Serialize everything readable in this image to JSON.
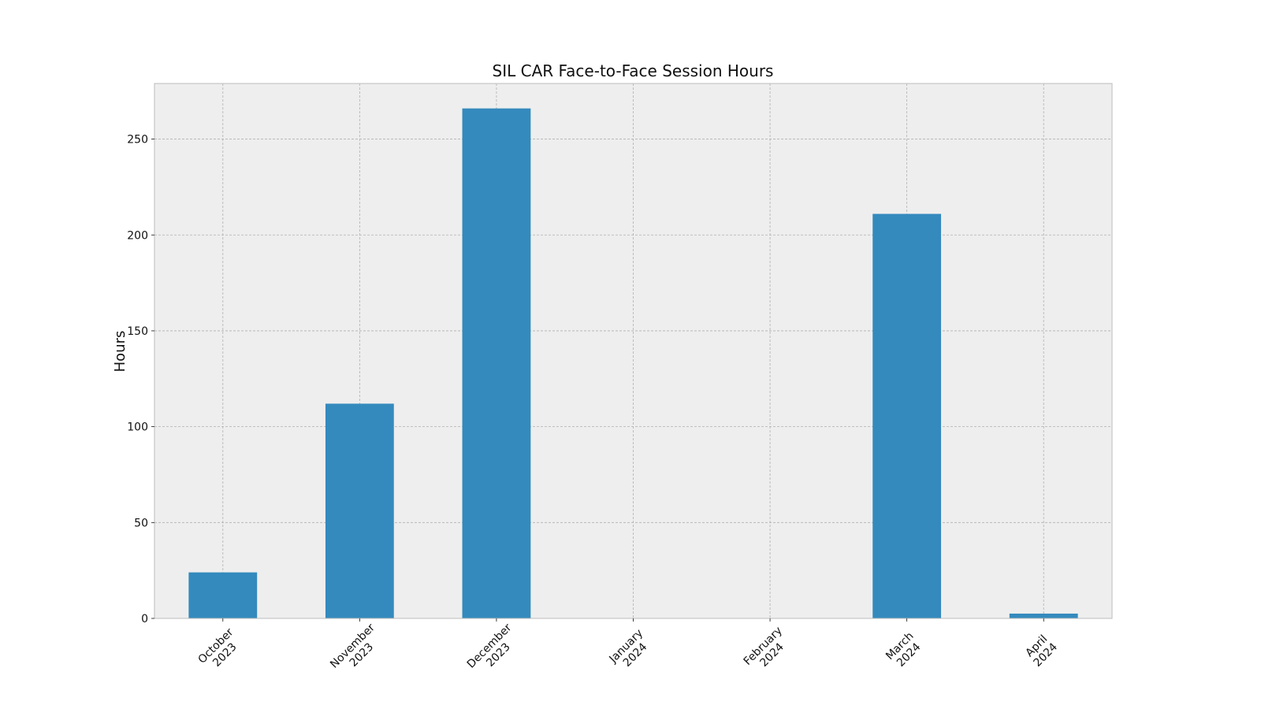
{
  "chart_data": {
    "type": "bar",
    "title": "SIL CAR Face-to-Face Session Hours",
    "xlabel": "",
    "ylabel": "Hours",
    "categories": [
      [
        "October",
        "2023"
      ],
      [
        "November",
        "2023"
      ],
      [
        "December",
        "2023"
      ],
      [
        "January",
        "2024"
      ],
      [
        "February",
        "2024"
      ],
      [
        "March",
        "2024"
      ],
      [
        "April",
        "2024"
      ]
    ],
    "values": [
      24,
      112,
      266,
      0,
      0,
      211,
      2.5
    ],
    "ylim": [
      0,
      279
    ],
    "yticks": [
      0,
      50,
      100,
      150,
      200,
      250
    ],
    "grid": true,
    "legend": "none"
  },
  "colors": {
    "bar": "#348abd",
    "plot_background": "#eeeeee",
    "plot_border": "#bcbcbc",
    "figure_background": "#ffffff",
    "text": "#111111"
  }
}
